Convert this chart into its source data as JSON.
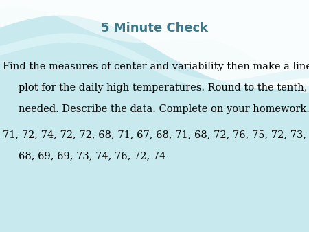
{
  "title": "5 Minute Check",
  "body_line1": "Find the measures of center and variability then make a line",
  "body_line2": "plot for the daily high temperatures. Round to the tenth, if",
  "body_line3": "needed. Describe the data. Complete on your homework.",
  "data_line1": "71, 72, 74, 72, 72, 68, 71, 67, 68, 71, 68, 72, 76, 75, 72, 73,",
  "data_line2": "68, 69, 69, 73, 74, 76, 72, 74",
  "bg_color": "#c8eaee",
  "wave_color1": "#ffffff",
  "wave_color2": "#e8f6f8",
  "title_color": "#3a7a8c",
  "body_color": "#000000",
  "title_fontsize": 13,
  "body_fontsize": 10.5,
  "data_fontsize": 10.5,
  "fig_width": 4.5,
  "fig_height": 3.38,
  "fig_dpi": 100
}
